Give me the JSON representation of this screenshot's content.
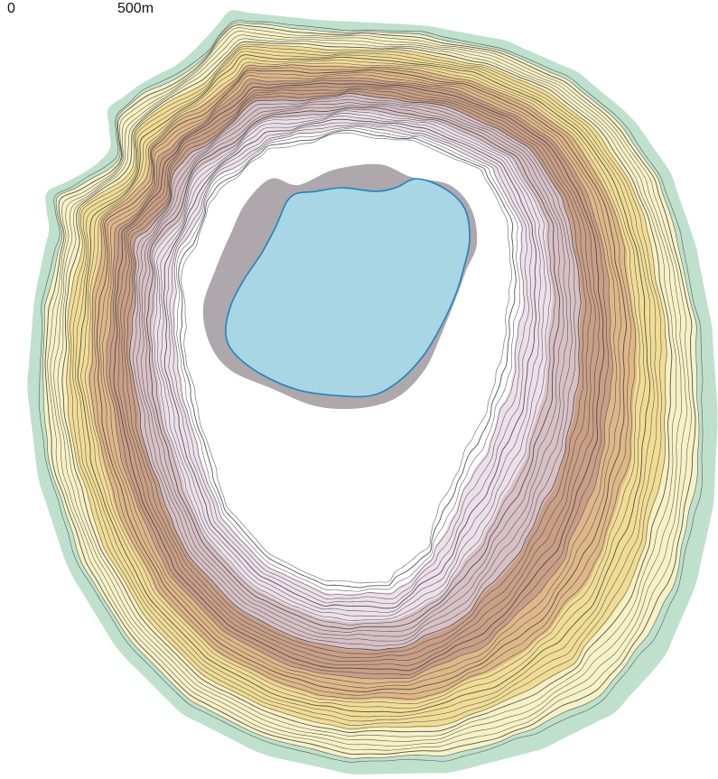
{
  "scale_bar": {
    "start_label": "0",
    "end_label": "500m"
  },
  "legend_colors": {
    "shallow_water": "#bfe0cc",
    "lowland": "#f7f1c7",
    "yellow_band": "#f1dc96",
    "tan_band": "#dfb889",
    "brown_band": "#c99f87",
    "mauve_band": "#d8c1c6",
    "lavender_band": "#ece0ea",
    "summit": "#ffffff",
    "crater_lake": "#a9d6e4",
    "lake_outline": "#1f84bd",
    "contour_line": "#3a3a3a"
  }
}
